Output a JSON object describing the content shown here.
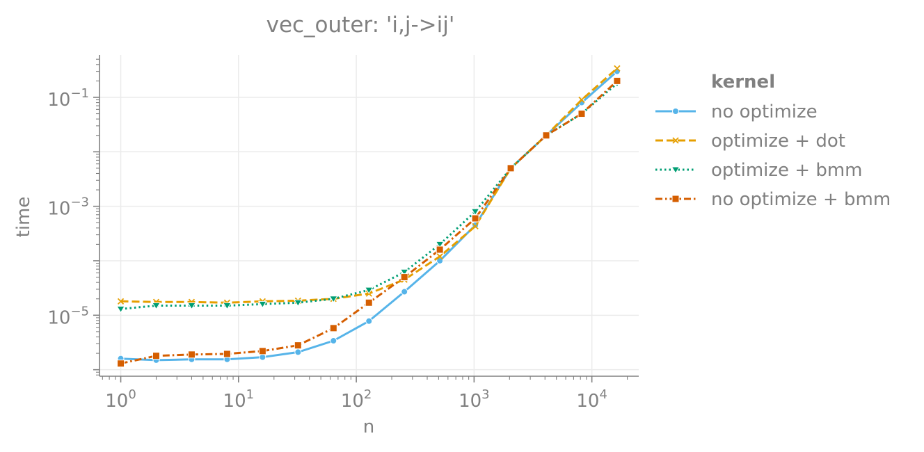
{
  "chart_data": {
    "type": "line",
    "title": "vec_outer: 'i,j->ij'",
    "xlabel": "n",
    "ylabel": "time",
    "xscale": "log",
    "yscale": "log",
    "xlim": [
      0.66,
      25000
    ],
    "ylim": [
      7.6e-07,
      0.6
    ],
    "grid": true,
    "legend": {
      "title": "kernel",
      "placement": "right, outside plot"
    },
    "x_ticks": [
      {
        "value": 1,
        "base": "10",
        "exp": "0"
      },
      {
        "value": 10,
        "base": "10",
        "exp": "1"
      },
      {
        "value": 100,
        "base": "10",
        "exp": "2"
      },
      {
        "value": 1000,
        "base": "10",
        "exp": "3"
      },
      {
        "value": 10000,
        "base": "10",
        "exp": "4"
      }
    ],
    "y_ticks": [
      {
        "value": 1e-05,
        "base": "10",
        "exp": "−5"
      },
      {
        "value": 0.001,
        "base": "10",
        "exp": "−3"
      },
      {
        "value": 0.1,
        "base": "10",
        "exp": "−1"
      }
    ],
    "x": [
      1,
      2,
      4,
      8,
      16,
      32,
      64,
      128,
      256,
      512,
      1024,
      2048,
      4096,
      8192,
      16384
    ],
    "series": [
      {
        "name": "no optimize",
        "color": "#56b4e9",
        "dash": "solid",
        "marker": "circle",
        "values": [
          1.6e-06,
          1.5e-06,
          1.55e-06,
          1.55e-06,
          1.7e-06,
          2.1e-06,
          3.4e-06,
          7.8e-06,
          2.7e-05,
          0.0001,
          0.00045,
          0.005,
          0.02,
          0.08,
          0.3
        ]
      },
      {
        "name": "optimize + dot",
        "color": "#e69f00",
        "dash": "dashed",
        "marker": "x",
        "values": [
          1.8e-05,
          1.75e-05,
          1.75e-05,
          1.7e-05,
          1.8e-05,
          1.85e-05,
          2e-05,
          2.5e-05,
          4.5e-05,
          0.00012,
          0.00043,
          0.005,
          0.02,
          0.09,
          0.34
        ]
      },
      {
        "name": "optimize + bmm",
        "color": "#009e73",
        "dash": "dotted",
        "marker": "triangle",
        "values": [
          1.3e-05,
          1.5e-05,
          1.5e-05,
          1.5e-05,
          1.6e-05,
          1.7e-05,
          2e-05,
          2.9e-05,
          6.2e-05,
          0.0002,
          0.0008,
          0.005,
          0.02,
          0.05,
          0.18
        ]
      },
      {
        "name": "no optimize + bmm",
        "color": "#d55e00",
        "dash": "dashdot",
        "marker": "square",
        "values": [
          1.3e-06,
          1.8e-06,
          1.9e-06,
          1.95e-06,
          2.2e-06,
          2.8e-06,
          5.8e-06,
          1.7e-05,
          5e-05,
          0.00016,
          0.0006,
          0.005,
          0.02,
          0.05,
          0.2
        ]
      }
    ]
  }
}
